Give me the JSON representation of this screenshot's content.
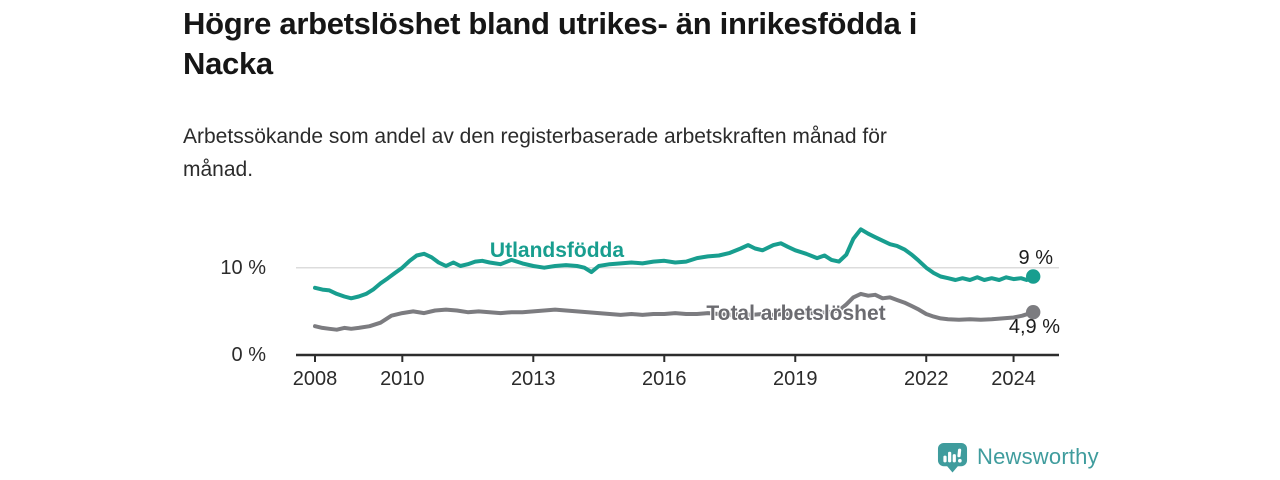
{
  "header": {
    "title": "Högre arbetslöshet bland utrikes- än inrikesfödda i\nNacka",
    "subtitle": "Arbetssökande som andel av den registerbaserade arbetskraften månad för\nmånad."
  },
  "chart_data": {
    "type": "line",
    "title": "Högre arbetslöshet bland utrikes- än inrikesfödda i Nacka",
    "subtitle": "Arbetssökande som andel av den registerbaserade arbetskraften månad för månad.",
    "xlabel": "",
    "ylabel": "",
    "unit": "%",
    "xlim": [
      2007.55,
      2025.05
    ],
    "ylim": [
      0,
      15
    ],
    "grid": "horizontal line at 10 % only",
    "legend": "inline labels next to lines",
    "x_ticks": [
      2008,
      2010,
      2013,
      2016,
      2019,
      2022,
      2024
    ],
    "y_ticks": [
      {
        "value": 0,
        "label": "0 %"
      },
      {
        "value": 10,
        "label": "10 %"
      }
    ],
    "series": [
      {
        "name": "Utlandsfödda",
        "color": "#189e8f",
        "end_label": "9 %",
        "end_value": 9.0,
        "points": [
          [
            2008.0,
            7.7
          ],
          [
            2008.17,
            7.5
          ],
          [
            2008.33,
            7.4
          ],
          [
            2008.5,
            7.0
          ],
          [
            2008.67,
            6.7
          ],
          [
            2008.83,
            6.5
          ],
          [
            2009.0,
            6.7
          ],
          [
            2009.17,
            7.0
          ],
          [
            2009.33,
            7.5
          ],
          [
            2009.5,
            8.2
          ],
          [
            2009.67,
            8.8
          ],
          [
            2009.83,
            9.4
          ],
          [
            2010.0,
            10.0
          ],
          [
            2010.17,
            10.8
          ],
          [
            2010.33,
            11.4
          ],
          [
            2010.5,
            11.6
          ],
          [
            2010.67,
            11.2
          ],
          [
            2010.83,
            10.6
          ],
          [
            2011.0,
            10.2
          ],
          [
            2011.17,
            10.6
          ],
          [
            2011.33,
            10.2
          ],
          [
            2011.5,
            10.4
          ],
          [
            2011.67,
            10.7
          ],
          [
            2011.83,
            10.8
          ],
          [
            2012.0,
            10.6
          ],
          [
            2012.25,
            10.4
          ],
          [
            2012.5,
            10.9
          ],
          [
            2012.75,
            10.5
          ],
          [
            2013.0,
            10.2
          ],
          [
            2013.25,
            10.0
          ],
          [
            2013.5,
            10.2
          ],
          [
            2013.75,
            10.3
          ],
          [
            2014.0,
            10.2
          ],
          [
            2014.17,
            10.0
          ],
          [
            2014.33,
            9.5
          ],
          [
            2014.5,
            10.2
          ],
          [
            2014.75,
            10.4
          ],
          [
            2015.0,
            10.5
          ],
          [
            2015.25,
            10.6
          ],
          [
            2015.5,
            10.5
          ],
          [
            2015.75,
            10.7
          ],
          [
            2016.0,
            10.8
          ],
          [
            2016.25,
            10.6
          ],
          [
            2016.5,
            10.7
          ],
          [
            2016.75,
            11.1
          ],
          [
            2017.0,
            11.3
          ],
          [
            2017.25,
            11.4
          ],
          [
            2017.5,
            11.7
          ],
          [
            2017.75,
            12.2
          ],
          [
            2017.92,
            12.6
          ],
          [
            2018.08,
            12.2
          ],
          [
            2018.25,
            12.0
          ],
          [
            2018.5,
            12.6
          ],
          [
            2018.67,
            12.8
          ],
          [
            2018.83,
            12.4
          ],
          [
            2019.0,
            12.0
          ],
          [
            2019.25,
            11.6
          ],
          [
            2019.5,
            11.1
          ],
          [
            2019.67,
            11.4
          ],
          [
            2019.83,
            10.9
          ],
          [
            2020.0,
            10.7
          ],
          [
            2020.17,
            11.5
          ],
          [
            2020.33,
            13.3
          ],
          [
            2020.5,
            14.4
          ],
          [
            2020.67,
            13.9
          ],
          [
            2020.83,
            13.5
          ],
          [
            2021.0,
            13.1
          ],
          [
            2021.17,
            12.7
          ],
          [
            2021.33,
            12.5
          ],
          [
            2021.5,
            12.1
          ],
          [
            2021.67,
            11.5
          ],
          [
            2021.83,
            10.8
          ],
          [
            2022.0,
            10.0
          ],
          [
            2022.17,
            9.4
          ],
          [
            2022.33,
            9.0
          ],
          [
            2022.5,
            8.8
          ],
          [
            2022.67,
            8.6
          ],
          [
            2022.83,
            8.8
          ],
          [
            2023.0,
            8.6
          ],
          [
            2023.17,
            8.9
          ],
          [
            2023.33,
            8.6
          ],
          [
            2023.5,
            8.8
          ],
          [
            2023.67,
            8.6
          ],
          [
            2023.83,
            8.9
          ],
          [
            2024.0,
            8.7
          ],
          [
            2024.17,
            8.8
          ],
          [
            2024.3,
            8.6
          ],
          [
            2024.45,
            9.0
          ]
        ]
      },
      {
        "name": "Total arbetslöshet",
        "color": "#7c7c80",
        "end_label": "4,9 %",
        "end_value": 4.9,
        "points": [
          [
            2008.0,
            3.3
          ],
          [
            2008.17,
            3.1
          ],
          [
            2008.33,
            3.0
          ],
          [
            2008.5,
            2.9
          ],
          [
            2008.67,
            3.1
          ],
          [
            2008.83,
            3.0
          ],
          [
            2009.0,
            3.1
          ],
          [
            2009.25,
            3.3
          ],
          [
            2009.5,
            3.7
          ],
          [
            2009.75,
            4.5
          ],
          [
            2010.0,
            4.8
          ],
          [
            2010.25,
            5.0
          ],
          [
            2010.5,
            4.8
          ],
          [
            2010.75,
            5.1
          ],
          [
            2011.0,
            5.2
          ],
          [
            2011.25,
            5.1
          ],
          [
            2011.5,
            4.9
          ],
          [
            2011.75,
            5.0
          ],
          [
            2012.0,
            4.9
          ],
          [
            2012.25,
            4.8
          ],
          [
            2012.5,
            4.9
          ],
          [
            2012.75,
            4.9
          ],
          [
            2013.0,
            5.0
          ],
          [
            2013.25,
            5.1
          ],
          [
            2013.5,
            5.2
          ],
          [
            2013.75,
            5.1
          ],
          [
            2014.0,
            5.0
          ],
          [
            2014.25,
            4.9
          ],
          [
            2014.5,
            4.8
          ],
          [
            2014.75,
            4.7
          ],
          [
            2015.0,
            4.6
          ],
          [
            2015.25,
            4.7
          ],
          [
            2015.5,
            4.6
          ],
          [
            2015.75,
            4.7
          ],
          [
            2016.0,
            4.7
          ],
          [
            2016.25,
            4.8
          ],
          [
            2016.5,
            4.7
          ],
          [
            2016.75,
            4.7
          ],
          [
            2017.0,
            4.8
          ],
          [
            2017.25,
            4.7
          ],
          [
            2017.5,
            4.6
          ],
          [
            2017.75,
            4.7
          ],
          [
            2018.0,
            4.6
          ],
          [
            2018.25,
            4.7
          ],
          [
            2018.5,
            4.6
          ],
          [
            2018.75,
            4.7
          ],
          [
            2019.0,
            4.7
          ],
          [
            2019.25,
            4.8
          ],
          [
            2019.5,
            4.8
          ],
          [
            2019.75,
            4.9
          ],
          [
            2020.0,
            5.1
          ],
          [
            2020.17,
            5.8
          ],
          [
            2020.33,
            6.6
          ],
          [
            2020.5,
            7.0
          ],
          [
            2020.67,
            6.8
          ],
          [
            2020.83,
            6.9
          ],
          [
            2021.0,
            6.5
          ],
          [
            2021.17,
            6.6
          ],
          [
            2021.33,
            6.3
          ],
          [
            2021.5,
            6.0
          ],
          [
            2021.67,
            5.6
          ],
          [
            2021.83,
            5.2
          ],
          [
            2022.0,
            4.7
          ],
          [
            2022.17,
            4.4
          ],
          [
            2022.33,
            4.2
          ],
          [
            2022.5,
            4.1
          ],
          [
            2022.75,
            4.05
          ],
          [
            2023.0,
            4.1
          ],
          [
            2023.25,
            4.05
          ],
          [
            2023.5,
            4.1
          ],
          [
            2023.75,
            4.2
          ],
          [
            2024.0,
            4.3
          ],
          [
            2024.2,
            4.5
          ],
          [
            2024.45,
            4.9
          ]
        ]
      }
    ]
  },
  "footer": {
    "brand": "Newsworthy"
  },
  "colors": {
    "teal_line": "#189e8f",
    "gray_line": "#7c7c80",
    "gray_label": "#6b6b70",
    "axis": "#2d2d2d",
    "gridline": "#dcdcdc",
    "title_text": "#161616",
    "body_text": "#2b2b2b",
    "brand_teal": "#3f9c9d"
  }
}
